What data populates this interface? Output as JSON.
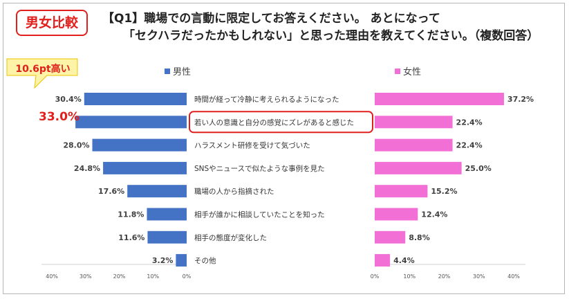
{
  "badge": "男女比較",
  "title_line1": "【Q1】職場での言動に限定してお答えください。 あとになって",
  "title_line2": "「セクハラだったかもしれない」と思った理由を教えてください。（複数回答）",
  "callout": "10.6pt高い",
  "highlight_value": "33.0%",
  "colors": {
    "male": "#4472c4",
    "female": "#f26fd6",
    "accent": "#e0201c"
  },
  "chart_data": {
    "type": "bar",
    "title": "【Q1】職場での言動に限定してお答えください。 あとになって「セクハラだったかもしれない」と思った理由を教えてください。（複数回答）",
    "categories": [
      "時間が経って冷静に考えられるようになった",
      "若い人の意識と自分の感覚にズレがあると感じた",
      "ハラスメント研修を受けて気づいた",
      "SNSやニュースで似たような事例を見た",
      "職場の人から指摘された",
      "相手が誰かに相談していたことを知った",
      "相手の態度が変化した",
      "その他"
    ],
    "highlighted_category": "若い人の意識と自分の感覚にズレがあると感じた",
    "series": [
      {
        "name": "男性",
        "values": [
          30.4,
          33.0,
          28.0,
          24.8,
          17.6,
          11.8,
          11.6,
          3.2
        ],
        "labels": [
          "30.4%",
          "33.0%",
          "28.0%",
          "24.8%",
          "17.6%",
          "11.8%",
          "11.6%",
          "3.2%"
        ]
      },
      {
        "name": "女性",
        "values": [
          37.2,
          22.4,
          22.4,
          25.0,
          15.2,
          12.4,
          8.8,
          4.4
        ],
        "labels": [
          "37.2%",
          "22.4%",
          "22.4%",
          "25.0%",
          "15.2%",
          "12.4%",
          "8.8%",
          "4.4%"
        ]
      }
    ],
    "male_axis": {
      "ticks": [
        "40%",
        "30%",
        "20%",
        "10%",
        "0%"
      ],
      "range": [
        0,
        40
      ],
      "direction": "reversed"
    },
    "female_axis": {
      "ticks": [
        "0%",
        "10%",
        "20%",
        "30%",
        "40%"
      ],
      "range": [
        0,
        40
      ]
    }
  }
}
